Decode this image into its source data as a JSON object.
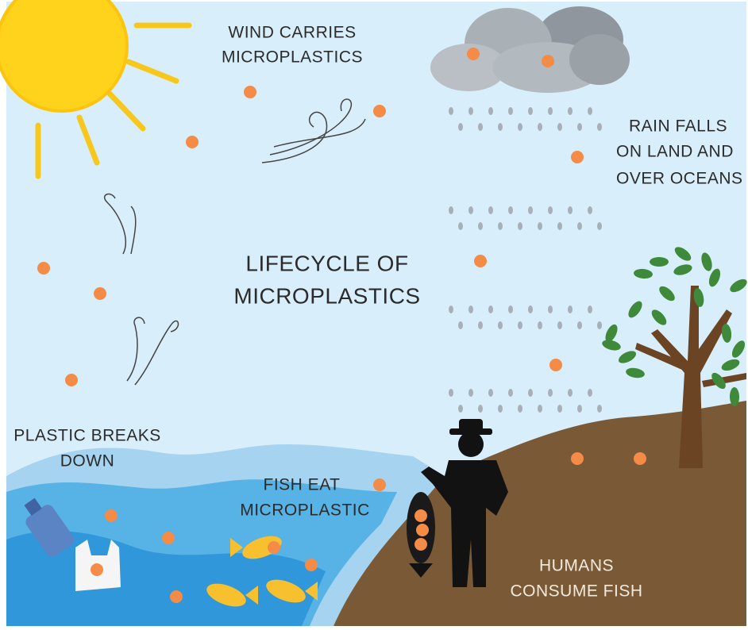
{
  "title": [
    "LIFECYCLE OF",
    "MICROPLASTICS"
  ],
  "stages": [
    {
      "label": [
        "WIND CARRIES",
        "MICROPLASTICS"
      ]
    },
    {
      "label": [
        "RAIN FALLS",
        "ON LAND AND",
        "OVER OCEANS"
      ]
    },
    {
      "label": [
        "PLASTIC BREAKS",
        "DOWN"
      ]
    },
    {
      "label": [
        "FISH EAT",
        "MICROPLASTIC"
      ]
    },
    {
      "label": [
        "HUMANS",
        "CONSUME FISH"
      ]
    }
  ]
}
